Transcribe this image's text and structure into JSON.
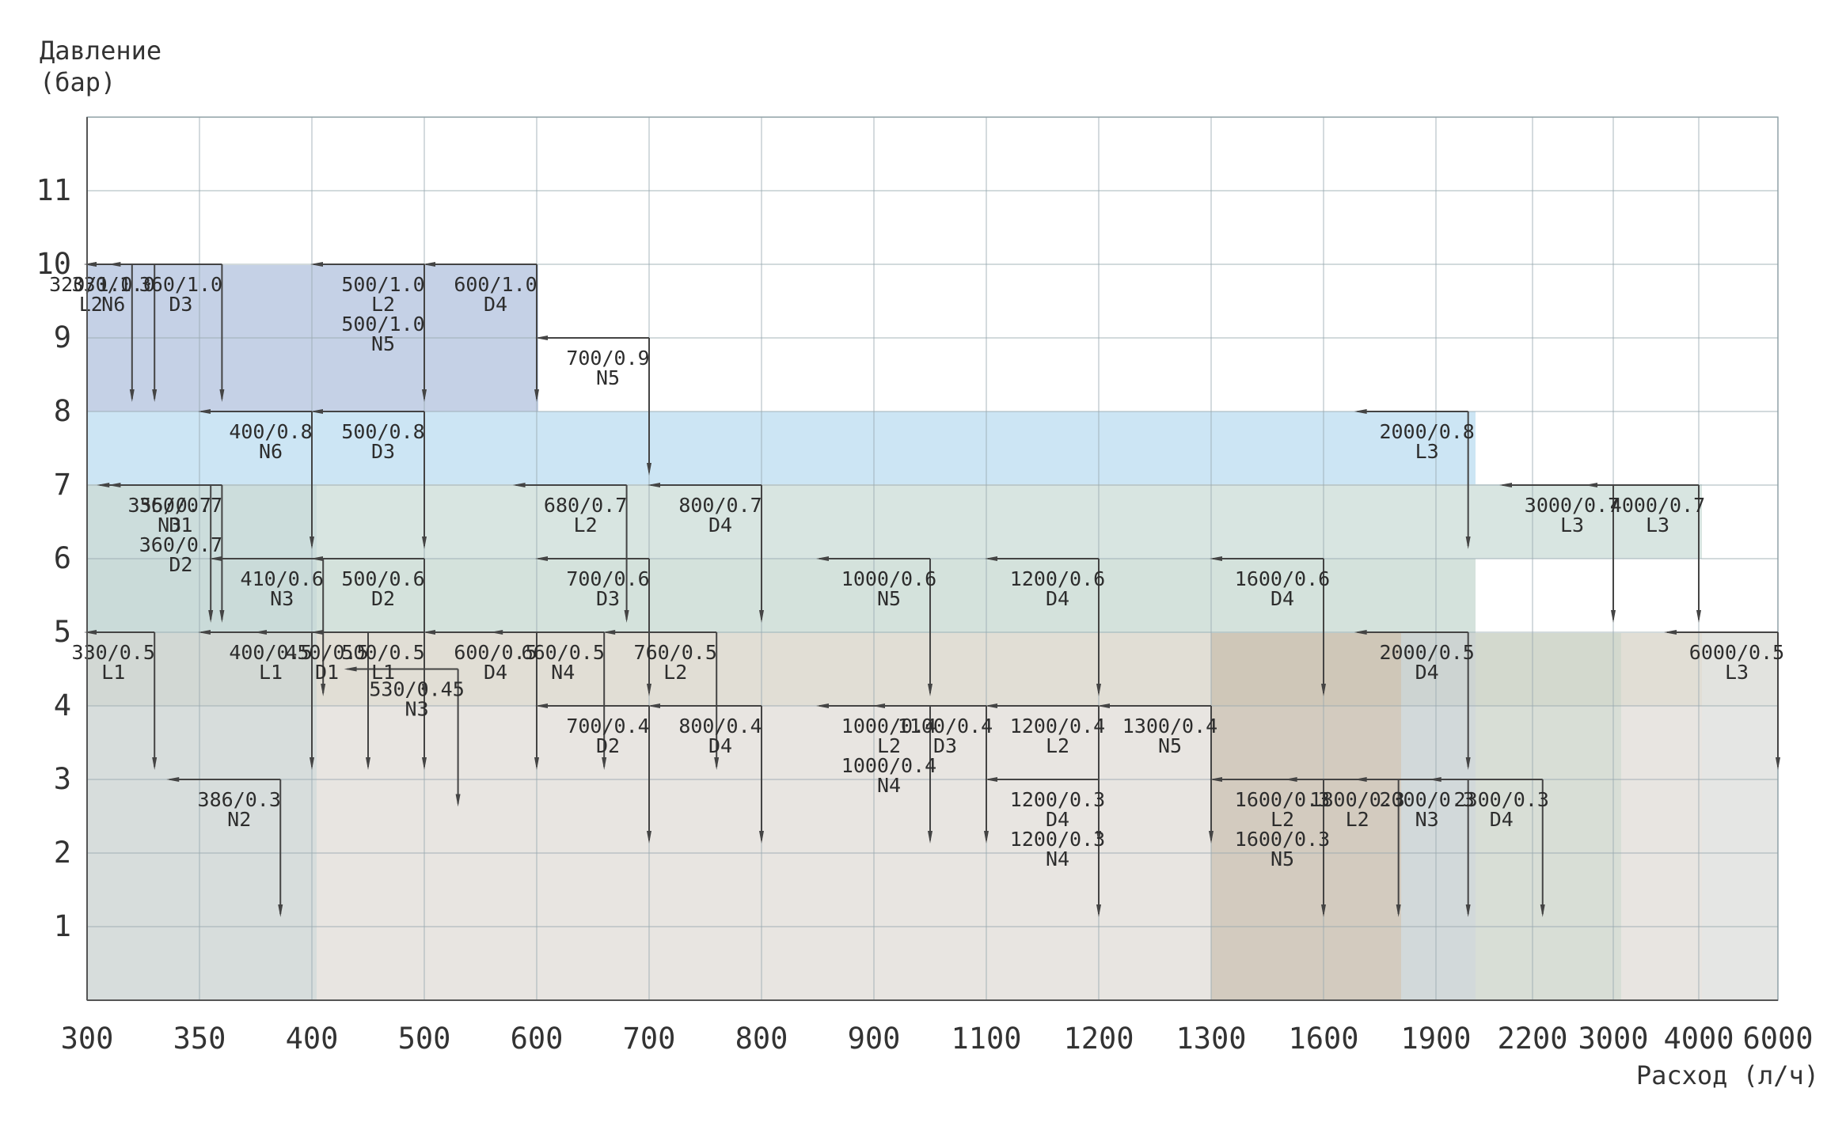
{
  "chart_data": {
    "type": "step",
    "ylabel": [
      "Давление",
      "(бар)"
    ],
    "xlabel": "Расход (л/ч)",
    "x_ticks": [
      "300",
      "350",
      "400",
      "500",
      "600",
      "700",
      "800",
      "900",
      "1100",
      "1200",
      "1300",
      "1600",
      "1900",
      "2200",
      "3000",
      "4000",
      "6000"
    ],
    "y_ticks": [
      1,
      2,
      3,
      4,
      5,
      6,
      7,
      8,
      9,
      10,
      11
    ],
    "ylim": [
      0,
      12
    ],
    "grid": true,
    "points": [
      {
        "flow": 320,
        "pressure": 1.0,
        "label": "320/1.0",
        "model": "L2"
      },
      {
        "flow": 330,
        "pressure": 1.0,
        "label": "330/1.0",
        "model": "N6"
      },
      {
        "flow": 360,
        "pressure": 1.0,
        "label": "360/1.0",
        "model": "D3"
      },
      {
        "flow": 500,
        "pressure": 1.0,
        "label": "500/1.0",
        "model": "L2"
      },
      {
        "flow": 500,
        "pressure": 1.0,
        "label": "500/1.0",
        "model": "N5"
      },
      {
        "flow": 600,
        "pressure": 1.0,
        "label": "600/1.0",
        "model": "D4"
      },
      {
        "flow": 700,
        "pressure": 0.9,
        "label": "700/0.9",
        "model": "N5"
      },
      {
        "flow": 400,
        "pressure": 0.8,
        "label": "400/0.8",
        "model": "N6"
      },
      {
        "flow": 500,
        "pressure": 0.8,
        "label": "500/0.8",
        "model": "D3"
      },
      {
        "flow": 2000,
        "pressure": 0.8,
        "label": "2000/0.8",
        "model": "L3"
      },
      {
        "flow": 360,
        "pressure": 0.7,
        "label": "360/0.7",
        "model": "D1"
      },
      {
        "flow": 360,
        "pressure": 0.7,
        "label": "360/0.7",
        "model": "D2"
      },
      {
        "flow": 355,
        "pressure": 0.7,
        "label": "355/0.7",
        "model": "N3"
      },
      {
        "flow": 680,
        "pressure": 0.7,
        "label": "680/0.7",
        "model": "L2"
      },
      {
        "flow": 800,
        "pressure": 0.7,
        "label": "800/0.7",
        "model": "D4"
      },
      {
        "flow": 3000,
        "pressure": 0.7,
        "label": "3000/0.7",
        "model": "L3"
      },
      {
        "flow": 4000,
        "pressure": 0.7,
        "label": "4000/0.7",
        "model": "L3"
      },
      {
        "flow": 410,
        "pressure": 0.6,
        "label": "410/0.6",
        "model": "N3"
      },
      {
        "flow": 500,
        "pressure": 0.6,
        "label": "500/0.6",
        "model": "D2"
      },
      {
        "flow": 700,
        "pressure": 0.6,
        "label": "700/0.6",
        "model": "D3"
      },
      {
        "flow": 1000,
        "pressure": 0.6,
        "label": "1000/0.6",
        "model": "N5"
      },
      {
        "flow": 1200,
        "pressure": 0.6,
        "label": "1200/0.6",
        "model": "D4"
      },
      {
        "flow": 1600,
        "pressure": 0.6,
        "label": "1600/0.6",
        "model": "D4"
      },
      {
        "flow": 330,
        "pressure": 0.5,
        "label": "330/0.5",
        "model": "L1"
      },
      {
        "flow": 450,
        "pressure": 0.5,
        "label": "450/0.5",
        "model": "D1"
      },
      {
        "flow": 500,
        "pressure": 0.5,
        "label": "500/0.5",
        "model": "L1"
      },
      {
        "flow": 600,
        "pressure": 0.5,
        "label": "600/0.5",
        "model": "D4"
      },
      {
        "flow": 660,
        "pressure": 0.5,
        "label": "660/0.5",
        "model": "N4"
      },
      {
        "flow": 760,
        "pressure": 0.5,
        "label": "760/0.5",
        "model": "L2"
      },
      {
        "flow": 2000,
        "pressure": 0.5,
        "label": "2000/0.5",
        "model": "D4"
      },
      {
        "flow": 6000,
        "pressure": 0.5,
        "label": "6000/0.5",
        "model": "L3"
      },
      {
        "flow": 530,
        "pressure": 0.45,
        "label": "530/0.45",
        "model": "N3"
      },
      {
        "flow": 400,
        "pressure": 0.5,
        "label": "400/0.5",
        "model": "L1"
      },
      {
        "flow": 700,
        "pressure": 0.4,
        "label": "700/0.4",
        "model": "D2"
      },
      {
        "flow": 800,
        "pressure": 0.4,
        "label": "800/0.4",
        "model": "D4"
      },
      {
        "flow": 1000,
        "pressure": 0.4,
        "label": "1000/0.4",
        "model": "L2"
      },
      {
        "flow": 1000,
        "pressure": 0.4,
        "label": "1000/0.4",
        "model": "N4"
      },
      {
        "flow": 1100,
        "pressure": 0.4,
        "label": "1100/0.4",
        "model": "D3"
      },
      {
        "flow": 1200,
        "pressure": 0.4,
        "label": "1200/0.4",
        "model": "L2"
      },
      {
        "flow": 1300,
        "pressure": 0.4,
        "label": "1300/0.4",
        "model": "N5"
      },
      {
        "flow": 386,
        "pressure": 0.3,
        "label": "386/0.3",
        "model": "N2"
      },
      {
        "flow": 1200,
        "pressure": 0.3,
        "label": "1200/0.3",
        "model": "D4"
      },
      {
        "flow": 1200,
        "pressure": 0.3,
        "label": "1200/0.3",
        "model": "N4"
      },
      {
        "flow": 1600,
        "pressure": 0.3,
        "label": "1600/0.3",
        "model": "L2"
      },
      {
        "flow": 1600,
        "pressure": 0.3,
        "label": "1600/0.3",
        "model": "N5"
      },
      {
        "flow": 1800,
        "pressure": 0.3,
        "label": "1800/0.3",
        "model": "L2"
      },
      {
        "flow": 2000,
        "pressure": 0.3,
        "label": "2000/0.3",
        "model": "N3"
      },
      {
        "flow": 2300,
        "pressure": 0.3,
        "label": "2300/0.3",
        "model": "D4"
      }
    ]
  }
}
